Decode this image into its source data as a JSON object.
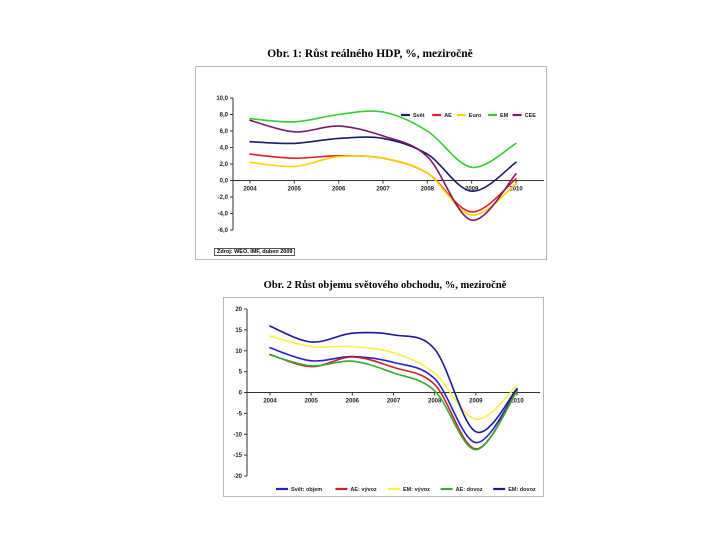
{
  "chart_data": [
    {
      "type": "line",
      "title": "Obr. 1: Růst reálného HDP, %, meziročně",
      "source": "Zdroj: WEO, IMF, duben 2009",
      "categories": [
        "2004",
        "2005",
        "2006",
        "2007",
        "2008",
        "2009",
        "2010"
      ],
      "y_ticks": [
        "10,0",
        "8,0",
        "6,0",
        "4,0",
        "2,0",
        "0,0",
        "-2,0",
        "-4,0",
        "-6,0"
      ],
      "ylim": [
        -6,
        10
      ],
      "legend_position": "top-right",
      "series": [
        {
          "name": "Svět",
          "color": "#1a1a66",
          "values": [
            4.7,
            4.5,
            5.1,
            5.1,
            3.2,
            -1.3,
            2.2
          ]
        },
        {
          "name": "AE",
          "color": "#e02020",
          "values": [
            3.2,
            2.7,
            3.0,
            2.7,
            0.9,
            -3.8,
            0.2
          ]
        },
        {
          "name": "Euro",
          "color": "#ffd200",
          "values": [
            2.2,
            1.7,
            2.9,
            2.7,
            0.9,
            -4.2,
            -0.4
          ]
        },
        {
          "name": "EM",
          "color": "#33cc33",
          "values": [
            7.5,
            7.1,
            8.0,
            8.3,
            6.0,
            1.6,
            4.5
          ]
        },
        {
          "name": "CEE",
          "color": "#7a1a66",
          "values": [
            7.3,
            5.9,
            6.6,
            5.4,
            2.9,
            -4.8,
            0.8
          ]
        }
      ]
    },
    {
      "type": "line",
      "title": "Obr. 2 Růst objemu světového obchodu, %, meziročně",
      "categories": [
        "2004",
        "2005",
        "2006",
        "2007",
        "2008",
        "2009",
        "2010"
      ],
      "y_ticks": [
        "20",
        "15",
        "10",
        "5",
        "0",
        "-5",
        "-10",
        "-15",
        "-20"
      ],
      "ylim": [
        -20,
        20
      ],
      "legend_position": "bottom",
      "series": [
        {
          "name": "Svět: objem",
          "color": "#2222cc",
          "values": [
            10.7,
            7.6,
            8.6,
            7.2,
            3.3,
            -12.0,
            0.6
          ]
        },
        {
          "name": "AE: vývoz",
          "color": "#cc2222",
          "values": [
            9.1,
            6.2,
            8.5,
            6.0,
            1.9,
            -13.5,
            0.5
          ]
        },
        {
          "name": "EM: vývoz",
          "color": "#ffee44",
          "values": [
            13.5,
            11.0,
            11.0,
            9.5,
            4.6,
            -6.4,
            1.6
          ]
        },
        {
          "name": "AE: dovoz",
          "color": "#33aa33",
          "values": [
            9.0,
            6.4,
            7.5,
            4.7,
            0.4,
            -13.7,
            0.3
          ]
        },
        {
          "name": "EM: dovoz",
          "color": "#1a1a99",
          "values": [
            15.9,
            12.1,
            14.2,
            13.8,
            10.4,
            -9.4,
            0.9
          ]
        }
      ]
    }
  ]
}
